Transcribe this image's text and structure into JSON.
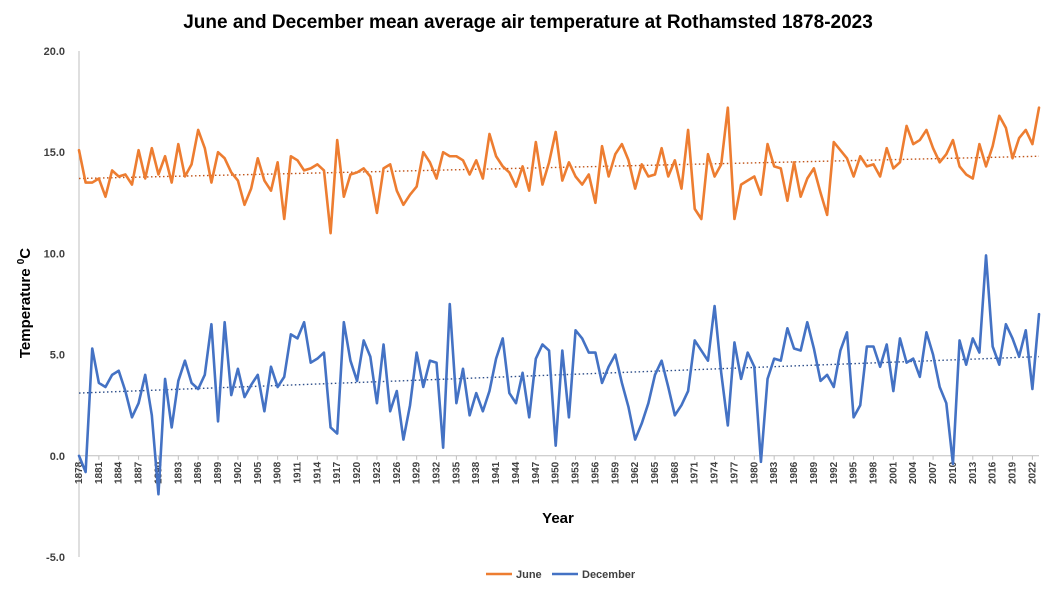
{
  "chart_data": {
    "type": "line",
    "title": "June and December mean average air temperature at Rothamsted 1878-2023",
    "xlabel": "Year",
    "ylabel": "Temperature ",
    "ylabel_superscript": "0",
    "ylabel_unit": "C",
    "ylim": [
      -5,
      20
    ],
    "xlim": [
      1878,
      2023
    ],
    "yticks": [
      "-5.0",
      "0.0",
      "5.0",
      "10.0",
      "15.0",
      "20.0"
    ],
    "xticks": [
      "1878",
      "1881",
      "1884",
      "1887",
      "1890",
      "1893",
      "1896",
      "1899",
      "1902",
      "1905",
      "1908",
      "1911",
      "1914",
      "1917",
      "1920",
      "1923",
      "1926",
      "1929",
      "1932",
      "1935",
      "1938",
      "1941",
      "1944",
      "1947",
      "1950",
      "1953",
      "1956",
      "1959",
      "1962",
      "1965",
      "1968",
      "1971",
      "1974",
      "1977",
      "1980",
      "1983",
      "1986",
      "1989",
      "1992",
      "1995",
      "1998",
      "2001",
      "2004",
      "2007",
      "2010",
      "2013",
      "2016",
      "2019",
      "2022"
    ],
    "grid": false,
    "legend": "bottom",
    "trendline": "linear, dotted",
    "colors": {
      "june": "#ED7D31",
      "december": "#4472C4"
    },
    "series": [
      {
        "name": "June",
        "start_year": 1878,
        "values": [
          15.1,
          13.5,
          13.5,
          13.7,
          12.8,
          14.1,
          13.8,
          13.9,
          13.4,
          15.1,
          13.7,
          15.2,
          13.9,
          14.8,
          13.5,
          15.4,
          13.8,
          14.4,
          16.1,
          15.2,
          13.5,
          15.0,
          14.7,
          14.0,
          13.6,
          12.4,
          13.2,
          14.7,
          13.6,
          13.1,
          14.5,
          11.7,
          14.8,
          14.6,
          14.1,
          14.2,
          14.4,
          14.1,
          11.0,
          15.6,
          12.8,
          13.9,
          14.0,
          14.2,
          13.8,
          12.0,
          14.2,
          14.4,
          13.1,
          12.4,
          12.9,
          13.3,
          15.0,
          14.5,
          13.7,
          15.0,
          14.8,
          14.8,
          14.6,
          13.9,
          14.6,
          13.7,
          15.9,
          14.8,
          14.3,
          14.0,
          13.3,
          14.3,
          13.1,
          15.5,
          13.4,
          14.5,
          16.0,
          13.6,
          14.5,
          13.8,
          13.4,
          13.9,
          12.5,
          15.3,
          13.8,
          14.9,
          15.4,
          14.6,
          13.2,
          14.4,
          13.8,
          13.9,
          15.2,
          13.8,
          14.6,
          13.2,
          16.1,
          12.2,
          11.7,
          14.9,
          13.8,
          14.4,
          17.2,
          11.7,
          13.4,
          13.6,
          13.8,
          12.9,
          15.4,
          14.3,
          14.2,
          12.6,
          14.5,
          12.8,
          13.7,
          14.2,
          13.0,
          11.9,
          15.5,
          15.1,
          14.7,
          13.8,
          14.8,
          14.3,
          14.4,
          13.8,
          15.2,
          14.2,
          14.5,
          16.3,
          15.4,
          15.6,
          16.1,
          15.2,
          14.5,
          14.9,
          15.6,
          14.3,
          13.9,
          13.7,
          15.4,
          14.3,
          15.3,
          16.8,
          16.2,
          14.7,
          15.7,
          16.1,
          15.4,
          17.2
        ]
      },
      {
        "name": "December",
        "start_year": 1878,
        "values": [
          0.0,
          -0.8,
          5.3,
          3.6,
          3.4,
          4.0,
          4.2,
          3.2,
          1.9,
          2.6,
          4.0,
          2.0,
          -1.9,
          3.8,
          1.4,
          3.7,
          4.7,
          3.6,
          3.3,
          4.0,
          6.5,
          1.7,
          6.6,
          3.0,
          4.3,
          2.9,
          3.5,
          4.0,
          2.2,
          4.4,
          3.4,
          3.9,
          6.0,
          5.8,
          6.6,
          4.6,
          4.8,
          5.1,
          1.4,
          1.1,
          6.6,
          4.7,
          3.7,
          5.7,
          4.9,
          2.6,
          5.5,
          2.2,
          3.2,
          0.8,
          2.5,
          5.1,
          3.4,
          4.7,
          4.6,
          0.4,
          7.5,
          2.6,
          4.3,
          2.0,
          3.1,
          2.2,
          3.2,
          4.8,
          5.8,
          3.1,
          2.6,
          4.1,
          1.9,
          4.8,
          5.5,
          5.2,
          0.5,
          5.2,
          1.9,
          6.2,
          5.8,
          5.1,
          5.1,
          3.6,
          4.4,
          5.0,
          3.6,
          2.4,
          0.8,
          1.6,
          2.6,
          4.0,
          4.7,
          3.4,
          2.0,
          2.5,
          3.2,
          5.7,
          5.2,
          4.7,
          7.4,
          4.1,
          1.5,
          5.6,
          3.8,
          5.1,
          4.4,
          -0.3,
          3.8,
          4.8,
          4.7,
          6.3,
          5.3,
          5.2,
          6.6,
          5.3,
          3.7,
          4.0,
          3.4,
          5.2,
          6.1,
          1.9,
          2.5,
          5.4,
          5.4,
          4.4,
          5.5,
          3.2,
          5.8,
          4.6,
          4.8,
          3.9,
          6.1,
          5.0,
          3.4,
          2.6,
          -0.4,
          5.7,
          4.5,
          5.8,
          5.1,
          9.9,
          5.4,
          4.5,
          6.5,
          5.8,
          4.9,
          6.2,
          3.3,
          7.0
        ]
      }
    ],
    "trendlines": [
      {
        "name": "June",
        "start": 13.7,
        "end": 14.8
      },
      {
        "name": "December",
        "start": 3.1,
        "end": 4.9
      }
    ]
  }
}
